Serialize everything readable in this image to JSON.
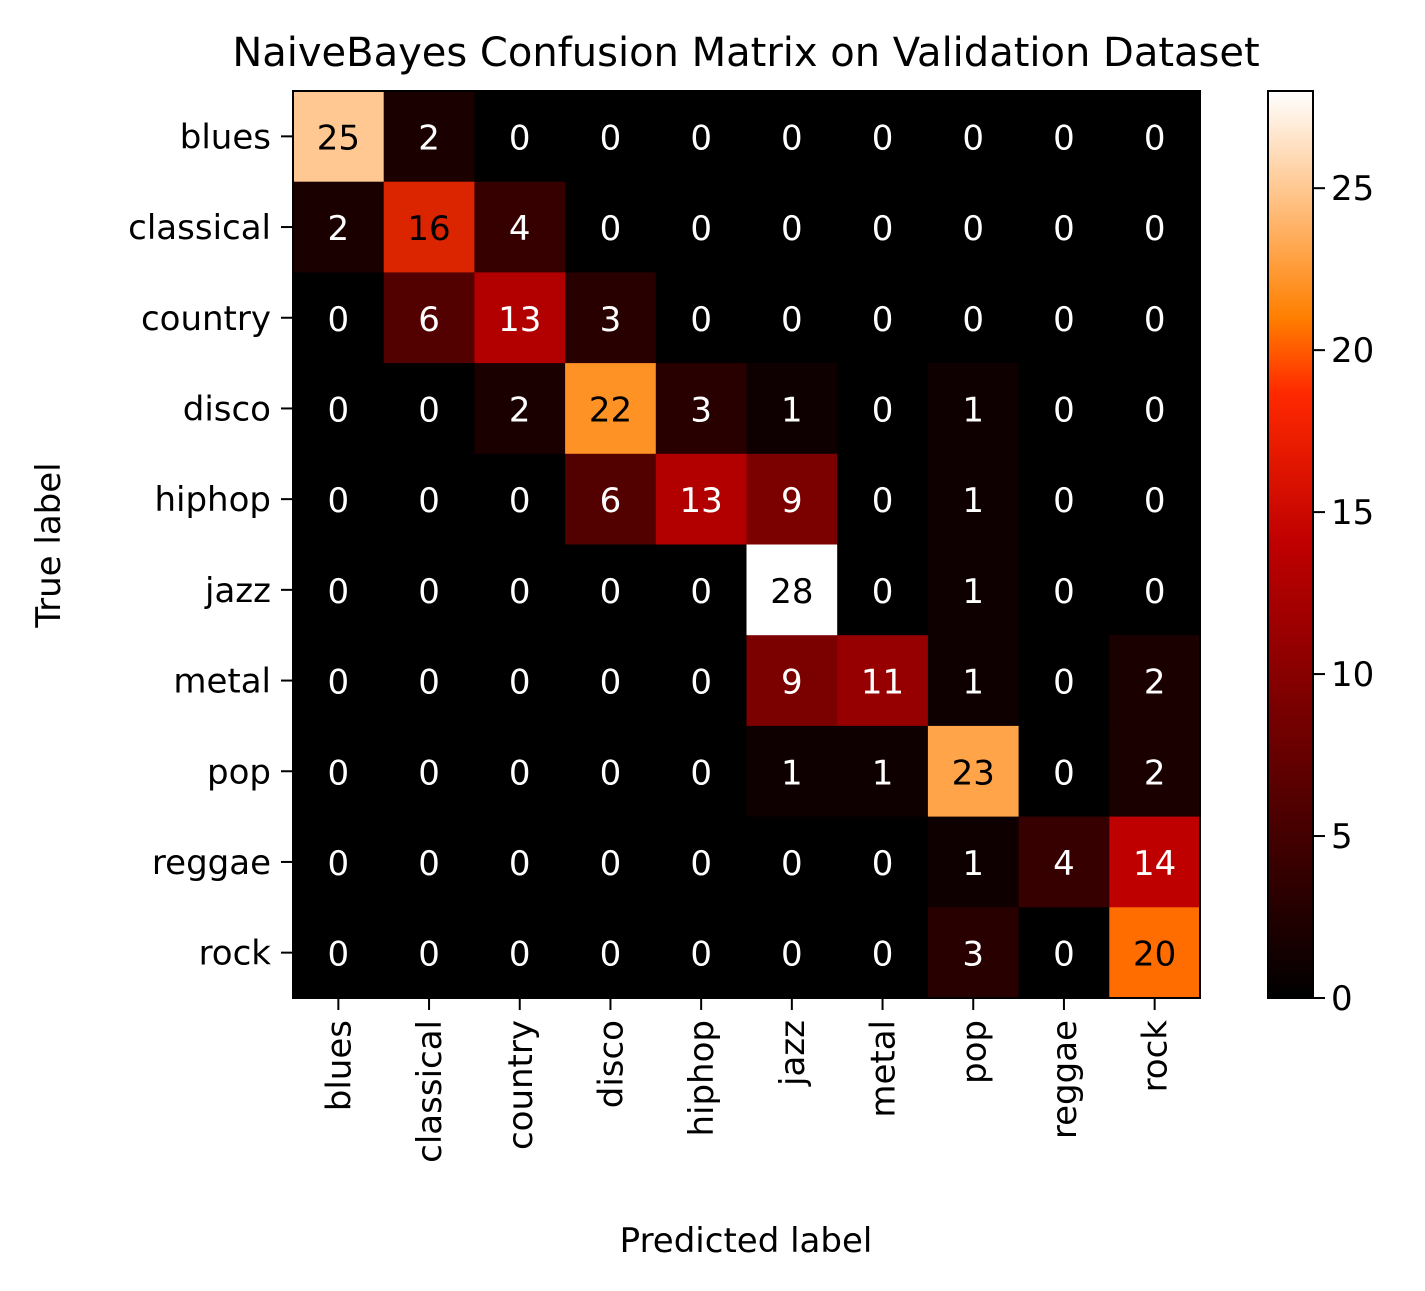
{
  "chart_data": {
    "type": "heatmap",
    "title": "NaiveBayes Confusion Matrix on Validation Dataset",
    "xlabel": "Predicted label",
    "ylabel": "True label",
    "labels": [
      "blues",
      "classical",
      "country",
      "disco",
      "hiphop",
      "jazz",
      "metal",
      "pop",
      "reggae",
      "rock"
    ],
    "matrix": [
      [
        25,
        2,
        0,
        0,
        0,
        0,
        0,
        0,
        0,
        0
      ],
      [
        2,
        16,
        4,
        0,
        0,
        0,
        0,
        0,
        0,
        0
      ],
      [
        0,
        6,
        13,
        3,
        0,
        0,
        0,
        0,
        0,
        0
      ],
      [
        0,
        0,
        2,
        22,
        3,
        1,
        0,
        1,
        0,
        0
      ],
      [
        0,
        0,
        0,
        6,
        13,
        9,
        0,
        1,
        0,
        0
      ],
      [
        0,
        0,
        0,
        0,
        0,
        28,
        0,
        1,
        0,
        0
      ],
      [
        0,
        0,
        0,
        0,
        0,
        9,
        11,
        1,
        0,
        2
      ],
      [
        0,
        0,
        0,
        0,
        0,
        1,
        1,
        23,
        0,
        2
      ],
      [
        0,
        0,
        0,
        0,
        0,
        0,
        0,
        1,
        4,
        14
      ],
      [
        0,
        0,
        0,
        0,
        0,
        0,
        0,
        3,
        0,
        20
      ]
    ],
    "colormap": "gist_heat",
    "colorbar": {
      "min": 0,
      "max": 28,
      "ticks": [
        0,
        5,
        10,
        15,
        20,
        25
      ]
    },
    "grid": false
  }
}
